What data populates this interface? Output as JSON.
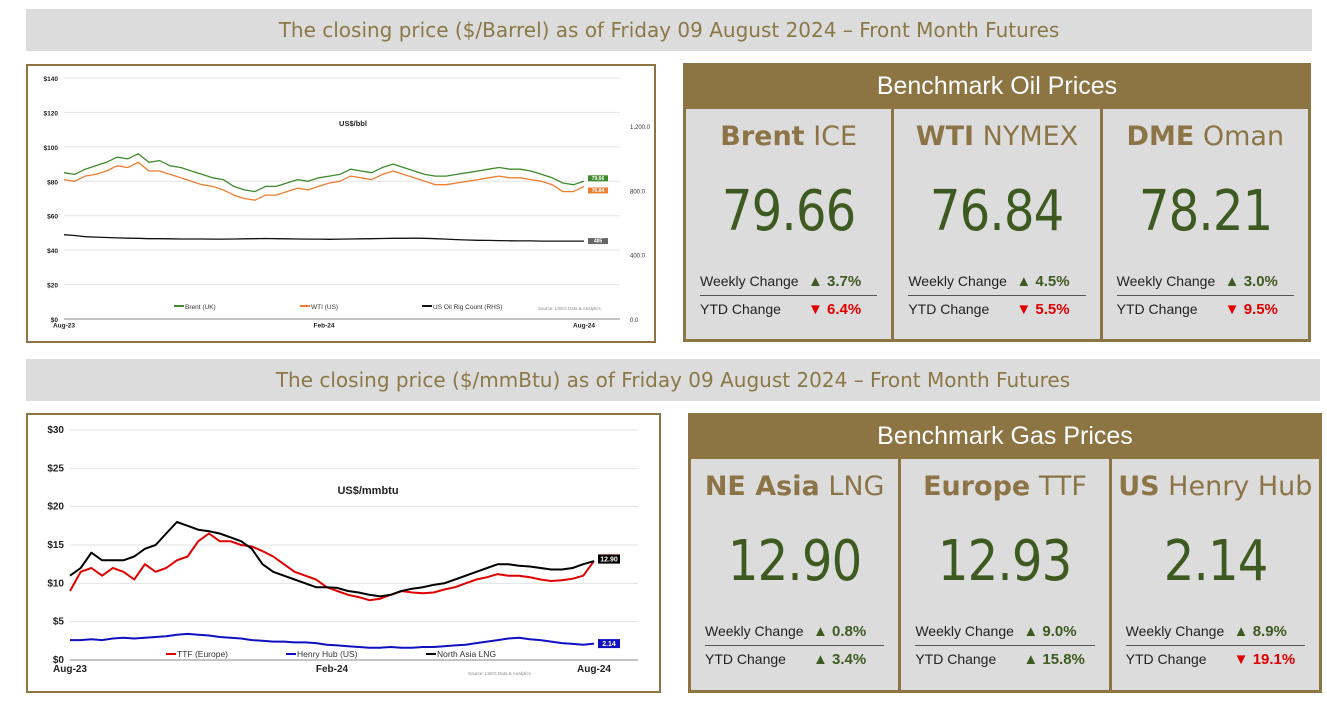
{
  "oil_section": {
    "banner": "The closing price ($/Barrel) as of Friday 09 August 2024 – Front Month  Futures",
    "panel_title": "Benchmark Oil Prices",
    "cards": [
      {
        "name_bold": "Brent",
        "name_rest": "ICE",
        "price": "79.66",
        "weekly_label": "Weekly Change",
        "weekly_arrow": "▲",
        "weekly_value": "3.7%",
        "weekly_dir": "up",
        "ytd_label": "YTD Change",
        "ytd_arrow": "▼",
        "ytd_value": "6.4%",
        "ytd_dir": "down"
      },
      {
        "name_bold": "WTI",
        "name_rest": "NYMEX",
        "price": "76.84",
        "weekly_label": "Weekly Change",
        "weekly_arrow": "▲",
        "weekly_value": "4.5%",
        "weekly_dir": "up",
        "ytd_label": "YTD Change",
        "ytd_arrow": "▼",
        "ytd_value": "5.5%",
        "ytd_dir": "down"
      },
      {
        "name_bold": "DME",
        "name_rest": "Oman",
        "price": "78.21",
        "weekly_label": "Weekly Change",
        "weekly_arrow": "▲",
        "weekly_value": "3.0%",
        "weekly_dir": "up",
        "ytd_label": "YTD Change",
        "ytd_arrow": "▼",
        "ytd_value": "9.5%",
        "ytd_dir": "down"
      }
    ]
  },
  "gas_section": {
    "banner": "The closing price ($/mmBtu) as of Friday 09 August 2024 – Front Month  Futures",
    "panel_title": "Benchmark Gas Prices",
    "cards": [
      {
        "name_bold": "NE Asia",
        "name_rest": "LNG",
        "price": "12.90",
        "weekly_label": "Weekly Change",
        "weekly_arrow": "▲",
        "weekly_value": "0.8%",
        "weekly_dir": "up",
        "ytd_label": "YTD Change",
        "ytd_arrow": "▲",
        "ytd_value": "3.4%",
        "ytd_dir": "up"
      },
      {
        "name_bold": "Europe",
        "name_rest": "TTF",
        "price": "12.93",
        "weekly_label": "Weekly Change",
        "weekly_arrow": "▲",
        "weekly_value": "9.0%",
        "weekly_dir": "up",
        "ytd_label": "YTD Change",
        "ytd_arrow": "▲",
        "ytd_value": "15.8%",
        "ytd_dir": "up"
      },
      {
        "name_bold": "US",
        "name_rest": "Henry Hub",
        "price": "2.14",
        "weekly_label": "Weekly Change",
        "weekly_arrow": "▲",
        "weekly_value": "8.9%",
        "weekly_dir": "up",
        "ytd_label": "YTD Change",
        "ytd_arrow": "▼",
        "ytd_value": "19.1%",
        "ytd_dir": "down"
      }
    ]
  },
  "colors": {
    "gold": "#8c7443",
    "green": "#3d5a20",
    "red": "#e10000",
    "panel_bg": "#dcdcdc"
  },
  "chart_data": [
    {
      "type": "line",
      "title": "US$/bbl",
      "source": "Source: LSEG Data & Analytics",
      "x_ticks": [
        "Aug-23",
        "Feb-24",
        "Aug-24"
      ],
      "y_ticks": [
        "$0",
        "$20",
        "$40",
        "$60",
        "$80",
        "$100",
        "$120",
        "$140"
      ],
      "y2_ticks": [
        "0.0",
        "400.0",
        "800.0",
        "1,200.0"
      ],
      "ylim": [
        0,
        140
      ],
      "y2lim": [
        0,
        1500
      ],
      "legend_position": "bottom",
      "series": [
        {
          "name": "Brent (UK)",
          "color": "#3f8a2c",
          "axis": "left",
          "end_label": "79.66",
          "values": [
            85,
            84,
            87,
            89,
            91,
            94,
            93,
            96,
            91,
            92,
            89,
            88,
            86,
            84,
            82,
            81,
            77,
            75,
            74,
            77,
            77,
            79,
            81,
            80,
            82,
            83,
            84,
            87,
            86,
            85,
            88,
            90,
            88,
            86,
            84,
            83,
            83,
            84,
            85,
            86,
            87,
            88,
            87,
            87,
            86,
            84,
            82,
            79,
            78,
            80
          ]
        },
        {
          "name": "WTI (US)",
          "color": "#ed7d31",
          "axis": "left",
          "end_label": "76.84",
          "values": [
            81,
            80,
            83,
            84,
            86,
            89,
            88,
            91,
            86,
            86,
            84,
            82,
            80,
            78,
            77,
            75,
            72,
            70,
            69,
            72,
            72,
            74,
            76,
            75,
            77,
            79,
            80,
            83,
            82,
            81,
            84,
            86,
            84,
            82,
            80,
            78,
            78,
            79,
            80,
            81,
            82,
            83,
            82,
            82,
            81,
            80,
            78,
            74,
            74,
            77
          ]
        },
        {
          "name": "US Oil Rig Count (RHS)",
          "color": "#111111",
          "axis": "right",
          "end_label": "485",
          "values": [
            525,
            520,
            512,
            510,
            507,
            505,
            503,
            502,
            500,
            500,
            499,
            498,
            498,
            498,
            497,
            497,
            498,
            499,
            500,
            501,
            500,
            499,
            498,
            497,
            497,
            496,
            497,
            498,
            499,
            500,
            501,
            502,
            502,
            503,
            502,
            500,
            497,
            494,
            492,
            490,
            489,
            488,
            487,
            486,
            486,
            485,
            485,
            485,
            485,
            485
          ]
        }
      ]
    },
    {
      "type": "line",
      "title": "US$/mmbtu",
      "source": "Source: LSEG Data & Analytics",
      "x_ticks": [
        "Aug-23",
        "Feb-24",
        "Aug-24"
      ],
      "y_ticks": [
        "$0",
        "$5",
        "$10",
        "$15",
        "$20",
        "$25",
        "$30"
      ],
      "ylim": [
        0,
        30
      ],
      "legend_position": "bottom",
      "series": [
        {
          "name": "TTF (Europe)",
          "color": "#e00000",
          "end_label": "12.93",
          "values": [
            9.0,
            11.5,
            12.0,
            11.0,
            12.0,
            11.5,
            10.5,
            12.5,
            11.5,
            12.0,
            13.0,
            13.5,
            15.5,
            16.5,
            15.5,
            15.5,
            15.0,
            14.8,
            14.2,
            13.5,
            12.5,
            11.5,
            11.0,
            10.5,
            9.5,
            9.0,
            8.5,
            8.2,
            7.8,
            8.0,
            8.5,
            9.0,
            8.8,
            8.7,
            8.8,
            9.2,
            9.5,
            10.0,
            10.5,
            10.8,
            11.2,
            11.0,
            11.0,
            10.8,
            10.5,
            10.3,
            10.4,
            10.6,
            11.0,
            12.93
          ]
        },
        {
          "name": "Henry Hub (US)",
          "color": "#1010c0",
          "end_label": "2.14",
          "values": [
            2.6,
            2.6,
            2.7,
            2.6,
            2.8,
            2.9,
            2.8,
            2.9,
            3.0,
            3.1,
            3.3,
            3.4,
            3.3,
            3.2,
            3.0,
            2.9,
            2.8,
            2.6,
            2.5,
            2.4,
            2.4,
            2.3,
            2.3,
            2.2,
            2.0,
            1.9,
            1.8,
            1.7,
            1.6,
            1.6,
            1.7,
            1.6,
            1.6,
            1.7,
            1.7,
            1.8,
            1.9,
            2.0,
            2.2,
            2.4,
            2.6,
            2.8,
            2.9,
            2.7,
            2.6,
            2.4,
            2.2,
            2.1,
            2.0,
            2.14
          ]
        },
        {
          "name": "North Asia LNG",
          "color": "#000000",
          "end_label": "12.90",
          "values": [
            11.0,
            12.0,
            14.0,
            13.0,
            13.0,
            13.0,
            13.5,
            14.5,
            15.0,
            16.5,
            18.0,
            17.5,
            17.0,
            16.8,
            16.5,
            16.0,
            15.5,
            14.5,
            12.5,
            11.5,
            11.0,
            10.5,
            10.0,
            9.5,
            9.5,
            9.4,
            9.0,
            8.8,
            8.5,
            8.3,
            8.5,
            9.0,
            9.3,
            9.5,
            9.8,
            10.0,
            10.5,
            11.0,
            11.5,
            12.0,
            12.5,
            12.5,
            12.3,
            12.2,
            12.0,
            11.8,
            11.8,
            12.0,
            12.5,
            12.9
          ]
        }
      ]
    }
  ]
}
